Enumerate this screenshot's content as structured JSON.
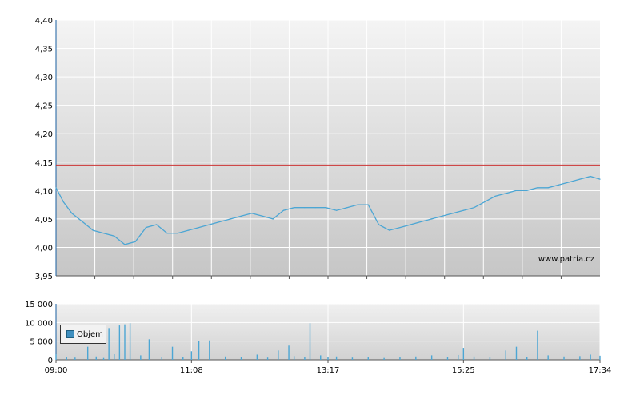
{
  "chart_data": [
    {
      "type": "line",
      "title": "",
      "xlabel": "",
      "ylabel": "",
      "ylim": [
        3.95,
        4.4
      ],
      "y_ticks": [
        "4,40",
        "4,35",
        "4,30",
        "4,25",
        "4,20",
        "4,15",
        "4,10",
        "4,05",
        "4,00",
        "3,95"
      ],
      "grid": true,
      "reference_line": {
        "value": 4.145,
        "color": "#cc3333"
      },
      "series": [
        {
          "color": "#4ca6d4",
          "x": [
            "09:00",
            "09:07",
            "09:15",
            "09:25",
            "09:35",
            "09:45",
            "09:55",
            "10:05",
            "10:15",
            "10:25",
            "10:35",
            "10:45",
            "10:55",
            "11:05",
            "11:15",
            "11:25",
            "11:35",
            "11:45",
            "11:55",
            "12:05",
            "12:15",
            "12:25",
            "12:35",
            "12:45",
            "12:55",
            "13:05",
            "13:15",
            "13:25",
            "13:35",
            "13:45",
            "13:55",
            "14:05",
            "14:15",
            "14:25",
            "14:35",
            "14:45",
            "14:55",
            "15:05",
            "15:15",
            "15:25",
            "15:35",
            "15:45",
            "15:55",
            "16:05",
            "16:15",
            "16:25",
            "16:35",
            "16:45",
            "16:55",
            "17:05",
            "17:15",
            "17:25",
            "17:34"
          ],
          "values": [
            4.105,
            4.08,
            4.06,
            4.045,
            4.03,
            4.025,
            4.02,
            4.005,
            4.01,
            4.035,
            4.04,
            4.025,
            4.025,
            4.03,
            4.035,
            4.04,
            4.045,
            4.05,
            4.055,
            4.06,
            4.055,
            4.05,
            4.065,
            4.07,
            4.07,
            4.07,
            4.07,
            4.065,
            4.07,
            4.075,
            4.075,
            4.04,
            4.03,
            4.035,
            4.04,
            4.045,
            4.05,
            4.055,
            4.06,
            4.065,
            4.07,
            4.08,
            4.09,
            4.095,
            4.1,
            4.1,
            4.105,
            4.105,
            4.11,
            4.115,
            4.12,
            4.125,
            4.12
          ]
        }
      ],
      "watermark": "www.patria.cz"
    },
    {
      "type": "bar",
      "ylim": [
        0,
        15000
      ],
      "y_ticks": [
        "15 000",
        "10 000",
        "5 000",
        "0"
      ],
      "x_ticks": [
        "09:00",
        "11:08",
        "13:17",
        "15:25",
        "17:34"
      ],
      "grid": true,
      "legend": [
        "Objem"
      ],
      "legend_position": "top-left",
      "series": [
        {
          "name": "Objem",
          "color": "#4ca6d4",
          "x": [
            "09:00",
            "09:10",
            "09:18",
            "09:30",
            "09:38",
            "09:45",
            "09:50",
            "09:55",
            "10:00",
            "10:05",
            "10:10",
            "10:20",
            "10:28",
            "10:40",
            "10:50",
            "11:00",
            "11:08",
            "11:15",
            "11:25",
            "11:40",
            "11:55",
            "12:10",
            "12:20",
            "12:30",
            "12:40",
            "12:45",
            "12:55",
            "13:00",
            "13:10",
            "13:17",
            "13:25",
            "13:40",
            "13:55",
            "14:10",
            "14:25",
            "14:40",
            "14:55",
            "15:10",
            "15:20",
            "15:25",
            "15:35",
            "15:50",
            "16:05",
            "16:15",
            "16:25",
            "16:35",
            "16:45",
            "17:00",
            "17:15",
            "17:25",
            "17:34"
          ],
          "values": [
            1500,
            800,
            600,
            3500,
            900,
            500,
            8500,
            1500,
            9200,
            9500,
            9800,
            1200,
            5500,
            800,
            3500,
            800,
            2300,
            5000,
            5200,
            900,
            700,
            1400,
            600,
            2500,
            3800,
            1000,
            700,
            9800,
            1200,
            700,
            900,
            600,
            800,
            500,
            700,
            900,
            1200,
            800,
            1300,
            3200,
            900,
            700,
            2500,
            3500,
            800,
            7800,
            1200,
            900,
            1000,
            1400,
            1100
          ]
        }
      ]
    }
  ]
}
